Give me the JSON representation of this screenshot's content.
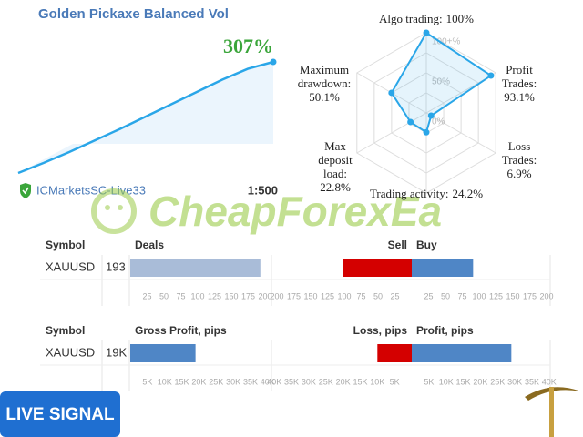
{
  "header": {
    "title": "Golden Pickaxe Balanced Vol",
    "growth_label": "307%",
    "broker": "ICMarketsSC-Live33",
    "leverage": "1:500"
  },
  "growth_curve": {
    "values": [
      0,
      28,
      58,
      90,
      122,
      156,
      190,
      224,
      258,
      288,
      307
    ]
  },
  "radar": {
    "ticks": [
      {
        "value": 0,
        "label": "0%"
      },
      {
        "value": 50,
        "label": "50%"
      },
      {
        "value": 100,
        "label": "100+%"
      }
    ],
    "axes": [
      {
        "label": [
          "Algo trading:"
        ],
        "value": 100,
        "value_label": "100%"
      },
      {
        "label": [
          "Profit",
          "Trades:"
        ],
        "value": 93.1,
        "value_label": "93.1%"
      },
      {
        "label": [
          "Loss",
          "Trades:"
        ],
        "value": 6.9,
        "value_label": "6.9%"
      },
      {
        "label": [
          "Trading activity:"
        ],
        "value": 24.2,
        "value_label": "24.2%"
      },
      {
        "label": [
          "Max",
          "deposit",
          "load:"
        ],
        "value": 22.8,
        "value_label": "22.8%"
      },
      {
        "label": [
          "Maximum",
          "drawdown:"
        ],
        "value": 50.1,
        "value_label": "50.1%"
      }
    ]
  },
  "deals": {
    "headers": {
      "symbol": "Symbol",
      "total": "Deals",
      "sell": "Sell",
      "buy": "Buy"
    },
    "symbol": "XAUUSD",
    "total": 193,
    "sell": 102,
    "buy": 91,
    "ticks": [
      25,
      50,
      75,
      100,
      125,
      150,
      175,
      200
    ]
  },
  "profit": {
    "headers": {
      "symbol": "Symbol",
      "total": "Gross Profit, pips",
      "loss": "Loss, pips",
      "profit": "Profit, pips"
    },
    "symbol": "XAUUSD",
    "total": 19000,
    "total_label": "19K",
    "loss": 10000,
    "profit": 29000,
    "ticks": [
      {
        "value": 5000,
        "label": "5K"
      },
      {
        "value": 10000,
        "label": "10K"
      },
      {
        "value": 15000,
        "label": "15K"
      },
      {
        "value": 20000,
        "label": "20K"
      },
      {
        "value": 25000,
        "label": "25K"
      },
      {
        "value": 30000,
        "label": "30K"
      },
      {
        "value": 35000,
        "label": "35K"
      },
      {
        "value": 40000,
        "label": "40K"
      }
    ]
  },
  "watermark": "CheapForexEa",
  "badge": "LIVE SIGNAL"
}
